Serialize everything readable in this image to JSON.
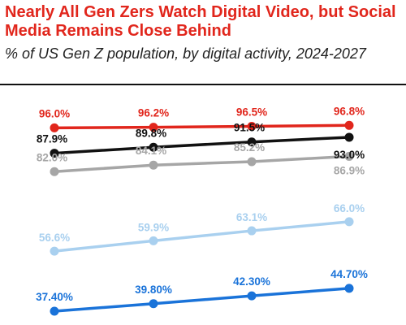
{
  "title": "Nearly All Gen Zers Watch Digital Video, but Social Media Remains Close Behind",
  "subtitle": "% of US Gen Z population, by digital activity, 2024-2027",
  "chart_data": {
    "type": "line",
    "title": "Nearly All Gen Zers Watch Digital Video, but Social Media Remains Close Behind",
    "subtitle": "% of US Gen Z population, by digital activity, 2024-2027",
    "xlabel": "",
    "ylabel": "",
    "legend": "none",
    "grid": false,
    "ylim": [
      30,
      100
    ],
    "series": [
      {
        "color": "#e1261c",
        "values": [
          96.0,
          96.2,
          96.5,
          96.8
        ],
        "labels": [
          "96.0%",
          "96.2%",
          "96.5%",
          "96.8%"
        ]
      },
      {
        "color": "#111111",
        "values": [
          87.9,
          89.8,
          91.5,
          93.0
        ],
        "labels": [
          "87.9%",
          "89.8%",
          "91.5%",
          "93.0%"
        ]
      },
      {
        "color": "#a6a6a6",
        "values": [
          82.0,
          84.1,
          85.2,
          86.9
        ],
        "labels": [
          "82.0%",
          "84.1%",
          "85.2%",
          "86.9%"
        ]
      },
      {
        "color": "#a9d0ef",
        "values": [
          56.6,
          59.9,
          63.1,
          66.0
        ],
        "labels": [
          "56.6%",
          "59.9%",
          "63.1%",
          "66.0%"
        ]
      },
      {
        "color": "#1a73d9",
        "values": [
          37.4,
          39.8,
          42.3,
          44.7
        ],
        "labels": [
          "37.40%",
          "39.80%",
          "42.30%",
          "44.70%"
        ]
      }
    ]
  }
}
